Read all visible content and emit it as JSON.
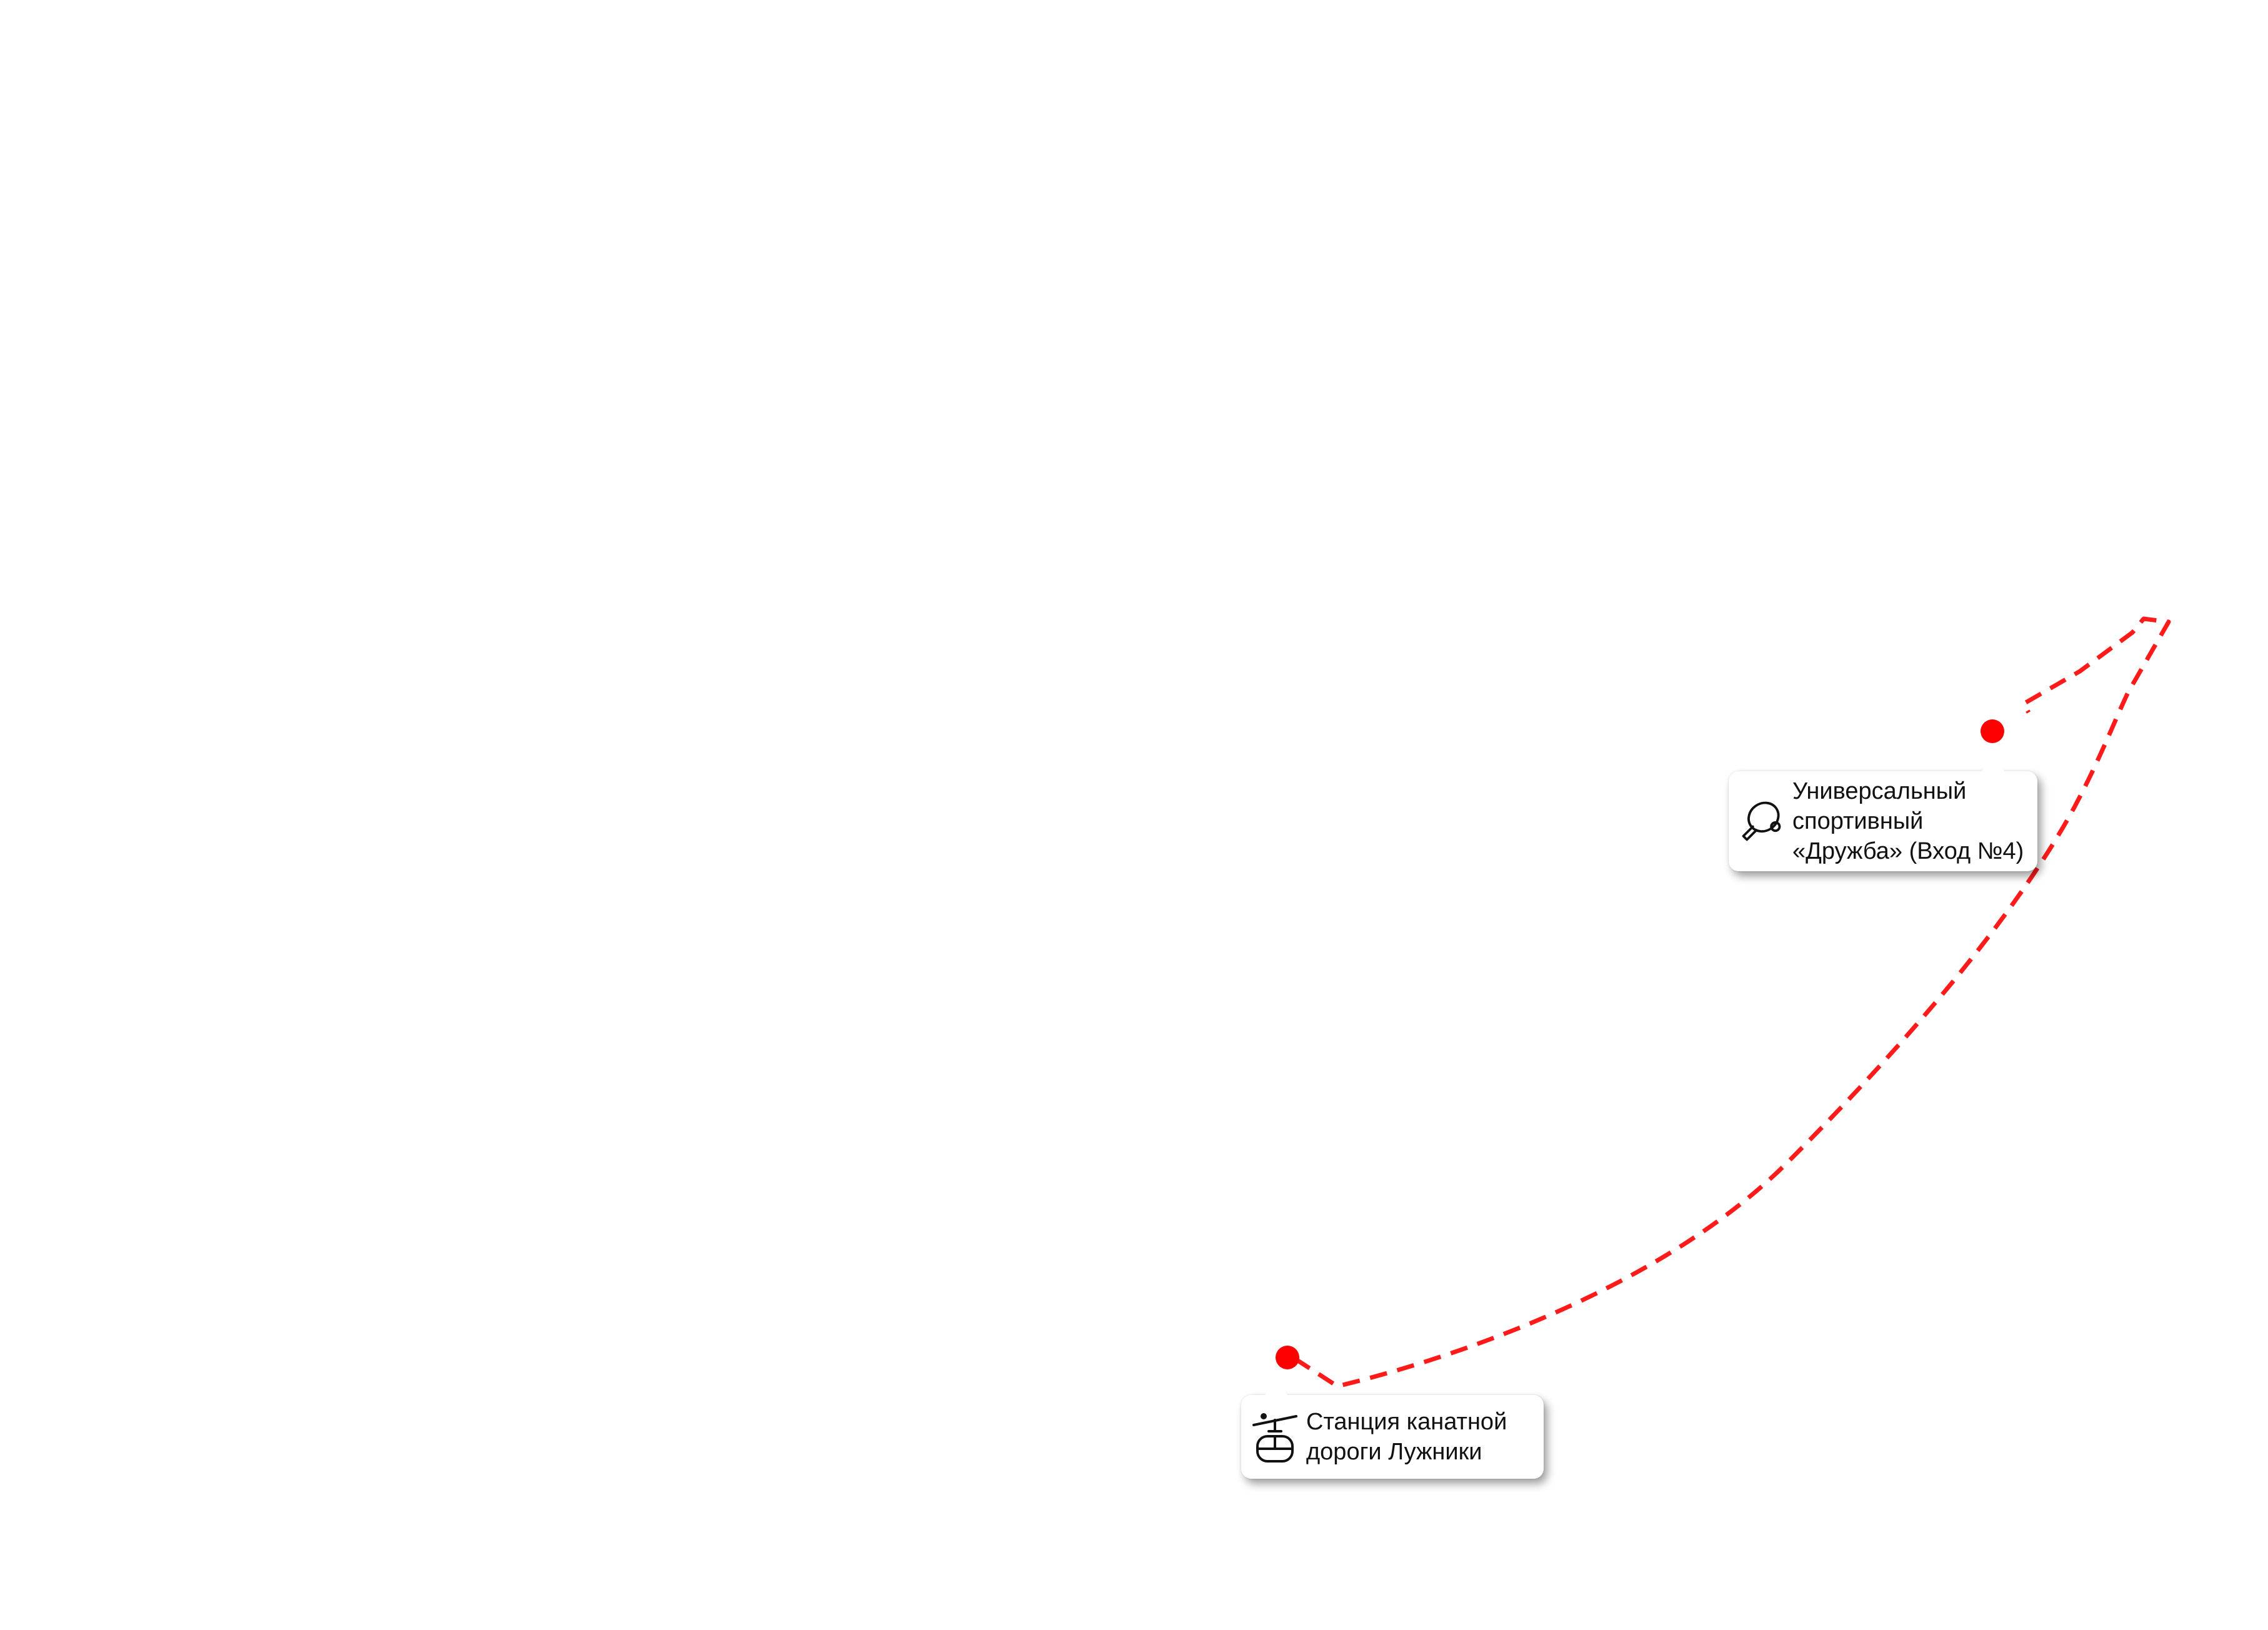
{
  "colors": {
    "route": "#ff1a1a",
    "marker": "#ff0000",
    "background": "#ffffff",
    "label_text": "#111111"
  },
  "markers": [
    {
      "id": "station",
      "icon": "cable-car-icon",
      "label_lines": [
        "Станция канатной",
        "дороги Лужники"
      ]
    },
    {
      "id": "arena",
      "icon": "table-tennis-icon",
      "label_lines": [
        "Универсальный",
        "спортивный",
        "«Дружба» (Вход №4)"
      ]
    }
  ]
}
